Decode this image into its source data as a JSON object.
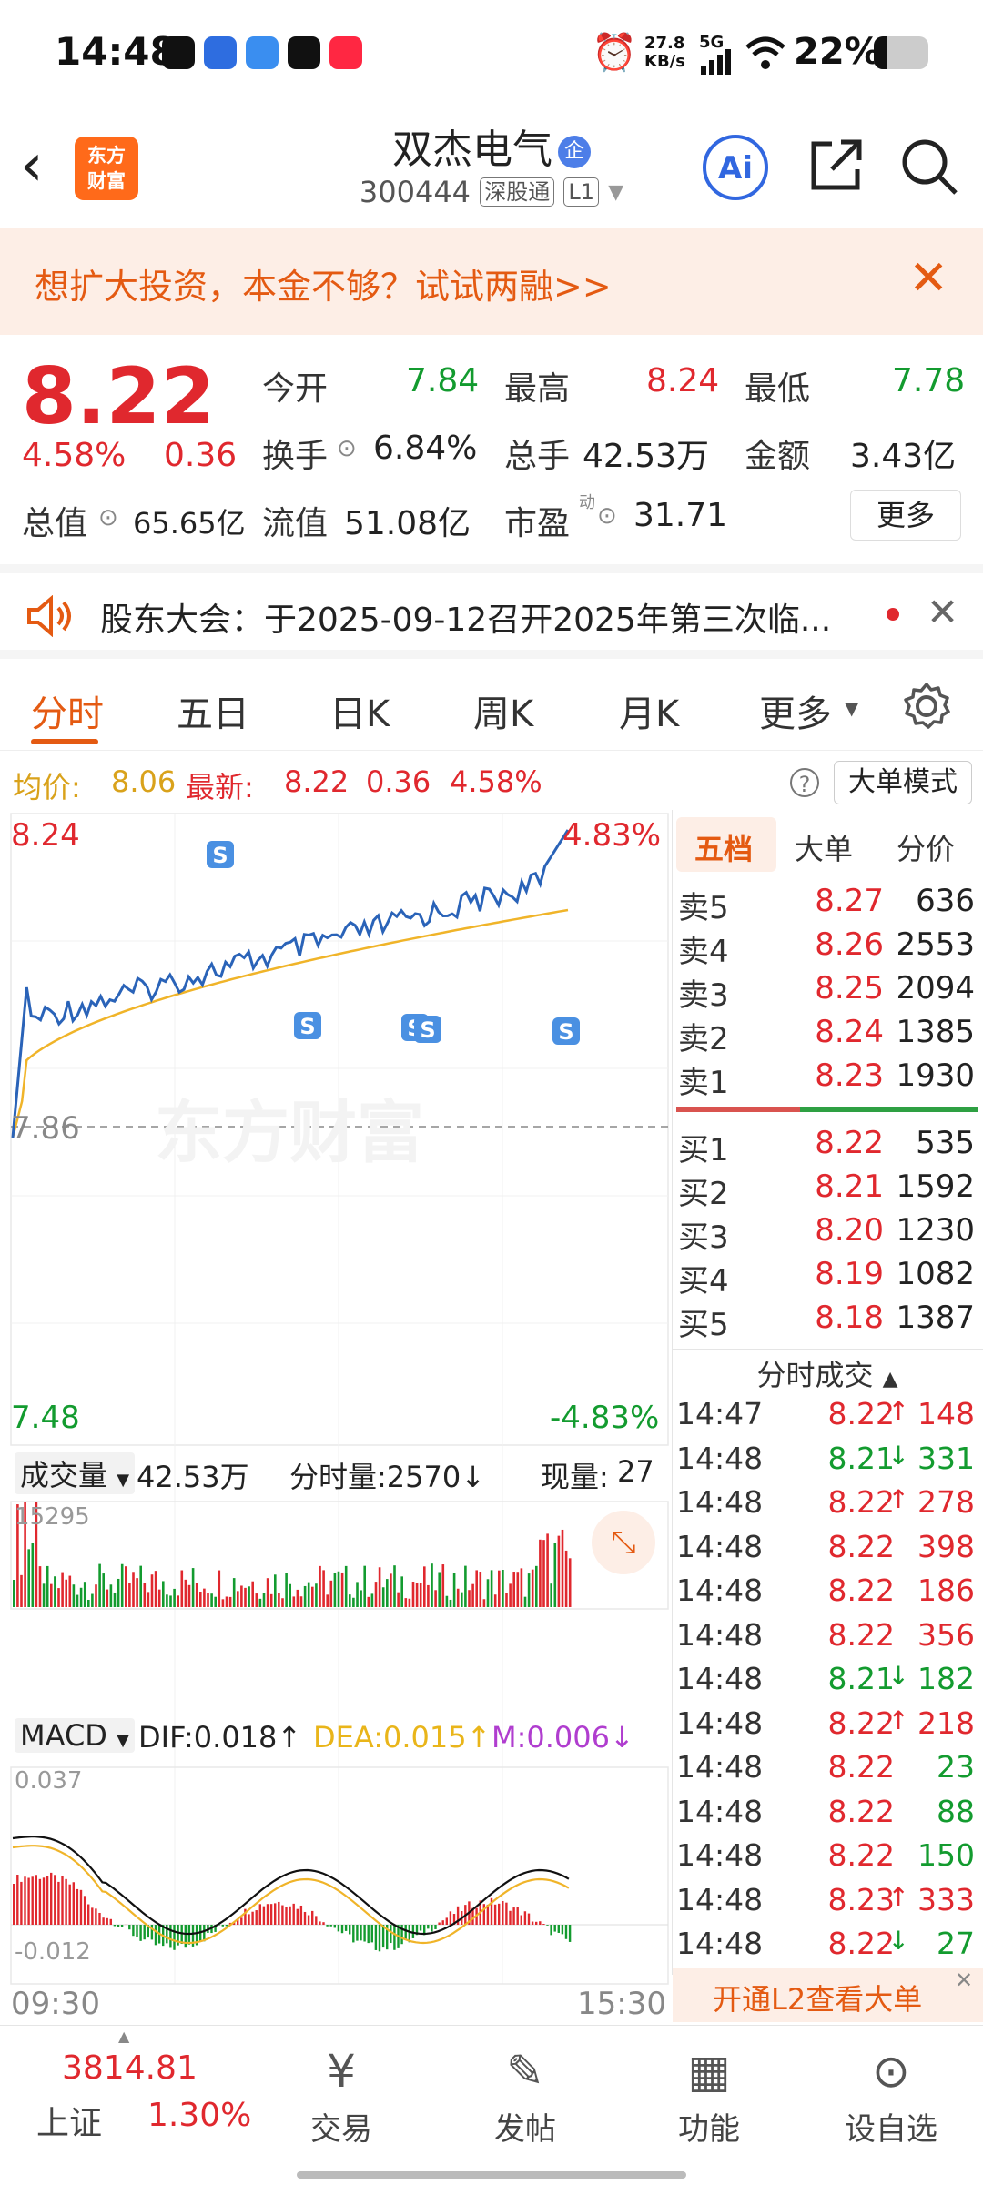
{
  "status_bar": {
    "time": "14:48",
    "speed": "27.8\nKB/s",
    "network": "5G",
    "battery": "22%"
  },
  "header": {
    "back_icon": "chevron-left-icon",
    "logo_text": "东方\n财富",
    "stock_name": "双杰电气",
    "name_badge": "企",
    "stock_code": "300444",
    "tag1": "深股通",
    "tag2": "L1",
    "ai_label": "Ai"
  },
  "banner": {
    "text": "想扩大投资，本金不够？试试两融>>",
    "close": "✕"
  },
  "quote": {
    "price": "8.22",
    "change_pct": "4.58%",
    "change": "0.36",
    "total_value_label": "总值",
    "total_value": "65.65亿",
    "open_label": "今开",
    "open": "7.84",
    "high_label": "最高",
    "high": "8.24",
    "low_label": "最低",
    "low": "7.78",
    "turnover_label": "换手",
    "turnover": "6.84%",
    "volume_label": "总手",
    "volume": "42.53万",
    "amount_label": "金额",
    "amount": "3.43亿",
    "float_label": "流值",
    "float_value": "51.08亿",
    "pe_label": "市盈",
    "pe_sup": "动",
    "pe": "31.71",
    "more": "更多"
  },
  "notice": {
    "text": "股东大会：于2025-09-12召开2025年第三次临..."
  },
  "tabs": [
    "分时",
    "五日",
    "日K",
    "周K",
    "月K",
    "更多"
  ],
  "info_line": {
    "avg_label": "均价:",
    "avg": "8.06",
    "last_label": "最新:",
    "last": "8.22",
    "change": "0.36",
    "pct": "4.58%",
    "mode_button": "大单模式"
  },
  "chart": {
    "y_top": "8.24",
    "y_mid": "7.86",
    "y_bottom": "7.48",
    "pct_top": "4.83%",
    "pct_bottom": "-4.83%",
    "watermark": "东方财富",
    "vol_label": "成交量",
    "vol_total": "42.53万",
    "vol_tick": "分时量:2570",
    "vol_now_label": "现量:",
    "vol_now": "27",
    "vol_max": "15295",
    "macd_label": "MACD",
    "dif": "DIF:0.018",
    "dea": "DEA:0.015",
    "m": "M:0.006",
    "macd_top": "0.037",
    "macd_bottom": "-0.012",
    "time_start": "09:30",
    "time_end": "15:30"
  },
  "order_book": {
    "tabs": [
      "五档",
      "大单",
      "分价"
    ],
    "asks": [
      {
        "label": "卖5",
        "price": "8.27",
        "vol": "636"
      },
      {
        "label": "卖4",
        "price": "8.26",
        "vol": "2553"
      },
      {
        "label": "卖3",
        "price": "8.25",
        "vol": "2094"
      },
      {
        "label": "卖2",
        "price": "8.24",
        "vol": "1385"
      },
      {
        "label": "卖1",
        "price": "8.23",
        "vol": "1930"
      }
    ],
    "bids": [
      {
        "label": "买1",
        "price": "8.22",
        "vol": "535"
      },
      {
        "label": "买2",
        "price": "8.21",
        "vol": "1592"
      },
      {
        "label": "买3",
        "price": "8.20",
        "vol": "1230"
      },
      {
        "label": "买4",
        "price": "8.19",
        "vol": "1082"
      },
      {
        "label": "买5",
        "price": "8.18",
        "vol": "1387"
      }
    ],
    "trades_title": "分时成交",
    "trades": [
      {
        "t": "14:47",
        "p": "8.22",
        "a": "↑",
        "v": "148",
        "c": "red"
      },
      {
        "t": "14:48",
        "p": "8.21",
        "a": "↓",
        "v": "331",
        "c": "green"
      },
      {
        "t": "14:48",
        "p": "8.22",
        "a": "↑",
        "v": "278",
        "c": "red"
      },
      {
        "t": "14:48",
        "p": "8.22",
        "a": "",
        "v": "398",
        "c": "red"
      },
      {
        "t": "14:48",
        "p": "8.22",
        "a": "",
        "v": "186",
        "c": "red"
      },
      {
        "t": "14:48",
        "p": "8.22",
        "a": "",
        "v": "356",
        "c": "red"
      },
      {
        "t": "14:48",
        "p": "8.21",
        "a": "↓",
        "v": "182",
        "c": "green"
      },
      {
        "t": "14:48",
        "p": "8.22",
        "a": "↑",
        "v": "218",
        "c": "red"
      },
      {
        "t": "14:48",
        "p": "8.22",
        "a": "",
        "v": "23",
        "c": "green"
      },
      {
        "t": "14:48",
        "p": "8.22",
        "a": "",
        "v": "88",
        "c": "green"
      },
      {
        "t": "14:48",
        "p": "8.22",
        "a": "",
        "v": "150",
        "c": "green"
      },
      {
        "t": "14:48",
        "p": "8.23",
        "a": "↑",
        "v": "333",
        "c": "red"
      },
      {
        "t": "14:48",
        "p": "8.22",
        "a": "↓",
        "v": "27",
        "c": "green"
      }
    ],
    "l2_banner": "开通L2查看大单"
  },
  "bottom_bar": {
    "index_value": "3814.81",
    "index_name": "上证",
    "index_pct": "1.30%",
    "items": [
      {
        "label": "交易",
        "icon": "trade-yen-icon"
      },
      {
        "label": "发帖",
        "icon": "edit-post-icon"
      },
      {
        "label": "功能",
        "icon": "grid-function-icon"
      },
      {
        "label": "设自选",
        "icon": "add-watchlist-icon"
      }
    ]
  },
  "colors": {
    "up": "#e0282e",
    "down": "#139b2f",
    "accent": "#e45a12",
    "price_line": "#2a63b8",
    "avg_line": "#f0b429"
  }
}
